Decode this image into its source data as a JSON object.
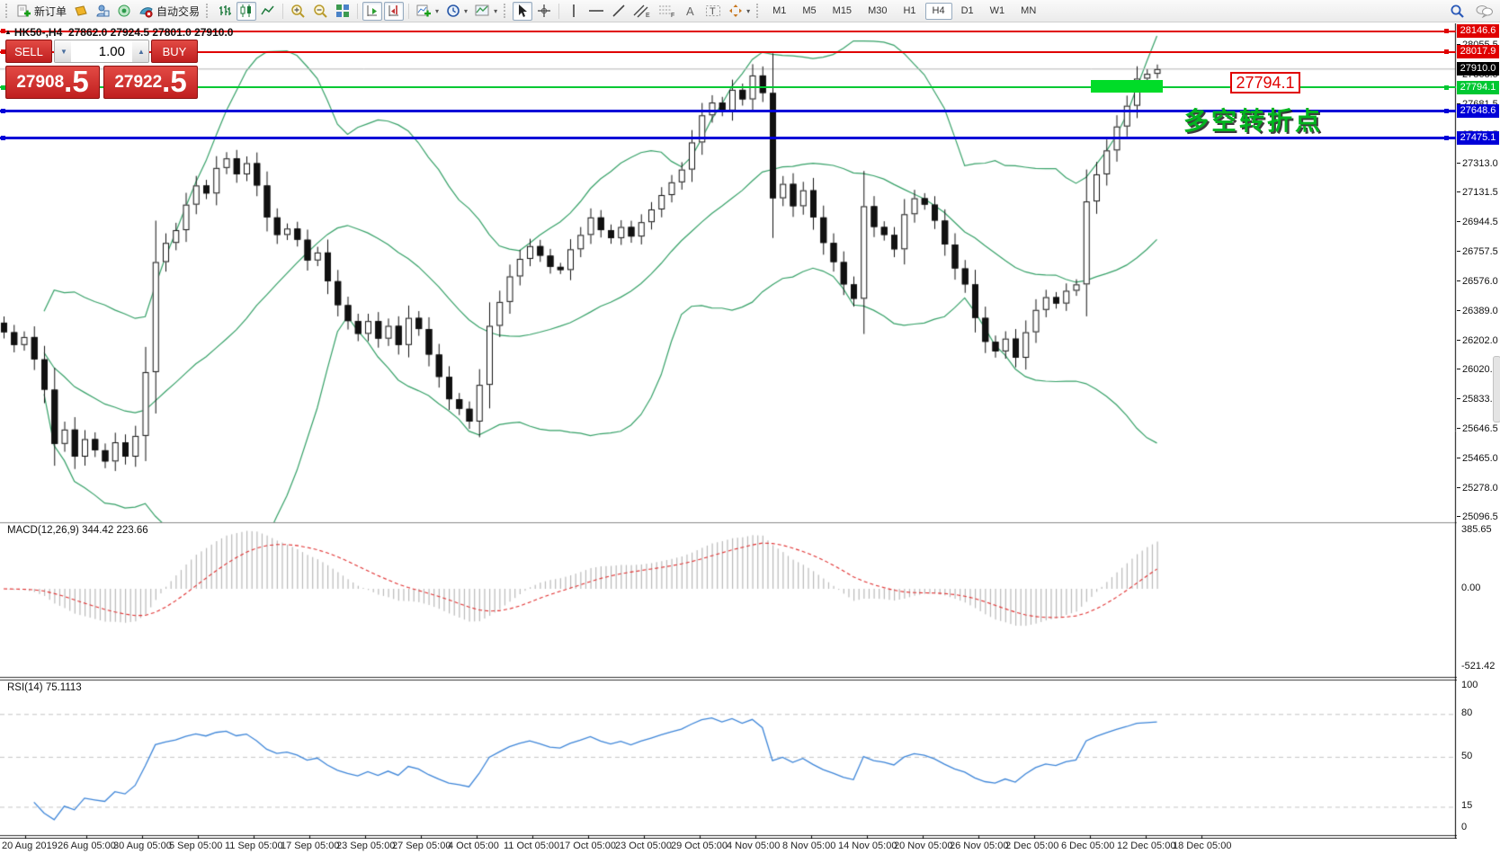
{
  "toolbar": {
    "new_order_label": "新订单",
    "auto_trading_label": "自动交易",
    "timeframes": {
      "items": [
        "M1",
        "M5",
        "M15",
        "M30",
        "H1",
        "H4",
        "D1",
        "W1",
        "MN"
      ],
      "selected": "H4"
    }
  },
  "chart": {
    "symbol_period": "HK50-,H4",
    "ohlc_text": "27862.0 27924.5 27801.0 27910.0",
    "trade_panel": {
      "sell_label": "SELL",
      "buy_label": "BUY",
      "volume": "1.00",
      "sell_price_int": "27908",
      "sell_price_frac": ".5",
      "buy_price_int": "27922",
      "buy_price_frac": ".5"
    },
    "annotation_label": "27794.1",
    "annotation_text": "多空转折点",
    "levels": [
      {
        "price": 28146.6,
        "label": "28146.6",
        "color": "#e00000",
        "thickness": 2
      },
      {
        "price": 28017.9,
        "label": "28017.9",
        "color": "#e00000",
        "thickness": 2
      },
      {
        "price": 27794.1,
        "label": "27794.1",
        "color": "#00c832",
        "thickness": 2
      },
      {
        "price": 27648.6,
        "label": "27648.6",
        "color": "#0000d8",
        "thickness": 3
      },
      {
        "price": 27475.1,
        "label": "27475.1",
        "color": "#0000d8",
        "thickness": 3
      }
    ],
    "current_price": {
      "value": 27910.0,
      "label": "27910.0",
      "bg": "#000000"
    },
    "price_ticks": [
      "28055.5",
      "27868.5",
      "27681.5",
      "27494.5",
      "27313.0",
      "27131.5",
      "26944.5",
      "26757.5",
      "26576.0",
      "26389.0",
      "26202.0",
      "26020.5",
      "25833.5",
      "25646.5",
      "25465.0",
      "25278.0",
      "25096.5"
    ]
  },
  "macd": {
    "label": "MACD(12,26,9) 344.42 223.66",
    "axis": [
      "385.65",
      "0.00",
      "-521.42"
    ]
  },
  "rsi": {
    "label": "RSI(14) 75.1113",
    "axis": [
      "100",
      "80",
      "50",
      "15",
      "0"
    ],
    "levels": [
      80,
      50,
      15
    ]
  },
  "time_axis": [
    "20 Aug 2019",
    "26 Aug 05:00",
    "30 Aug 05:00",
    "5 Sep 05:00",
    "11 Sep 05:00",
    "17 Sep 05:00",
    "23 Sep 05:00",
    "27 Sep 05:00",
    "4 Oct 05:00",
    "11 Oct 05:00",
    "17 Oct 05:00",
    "23 Oct 05:00",
    "29 Oct 05:00",
    "4 Nov 05:00",
    "8 Nov 05:00",
    "14 Nov 05:00",
    "20 Nov 05:00",
    "26 Nov 05:00",
    "2 Dec 05:00",
    "6 Dec 05:00",
    "12 Dec 05:00",
    "18 Dec 05:00"
  ],
  "chart_data": {
    "type": "candlestick",
    "symbol": "HK50-",
    "period": "H4",
    "price_axis": {
      "top_price": 28196,
      "bottom_price": 25068
    },
    "last_ohlc": {
      "open": 27862.0,
      "high": 27924.5,
      "low": 27801.0,
      "close": 27910.0
    },
    "closes": [
      26260,
      26180,
      26230,
      26090,
      25900,
      25560,
      25650,
      25480,
      25590,
      25520,
      25450,
      25570,
      25480,
      25610,
      26010,
      26700,
      26820,
      26900,
      27060,
      27180,
      27130,
      27290,
      27350,
      27250,
      27320,
      27180,
      26980,
      26870,
      26910,
      26840,
      26710,
      26760,
      26580,
      26430,
      26330,
      26250,
      26330,
      26220,
      26300,
      26180,
      26350,
      26280,
      26120,
      25980,
      25840,
      25780,
      25700,
      25930,
      26300,
      26450,
      26610,
      26720,
      26800,
      26740,
      26670,
      26650,
      26780,
      26870,
      26980,
      26900,
      26850,
      26920,
      26860,
      26950,
      27030,
      27120,
      27200,
      27280,
      27450,
      27620,
      27700,
      27650,
      27780,
      27720,
      27870,
      27760,
      27100,
      27190,
      27050,
      27150,
      26980,
      26820,
      26700,
      26560,
      26470,
      27050,
      26920,
      26870,
      26780,
      27000,
      27100,
      27060,
      26960,
      26810,
      26660,
      26560,
      26350,
      26200,
      26140,
      26220,
      26100,
      26260,
      26400,
      26480,
      26440,
      26520,
      26560,
      27080,
      27250,
      27400,
      27550,
      27680,
      27850,
      27880,
      27910
    ],
    "indicators": {
      "bollinger": {
        "period": 20,
        "deviation": 2,
        "color": "#35a067"
      },
      "macd": {
        "fast": 12,
        "slow": 26,
        "signal": 9,
        "hist_color": "#b9b9b9",
        "signal_color": "#e03030"
      },
      "rsi": {
        "period": 14,
        "color": "#3d85d8"
      }
    }
  }
}
